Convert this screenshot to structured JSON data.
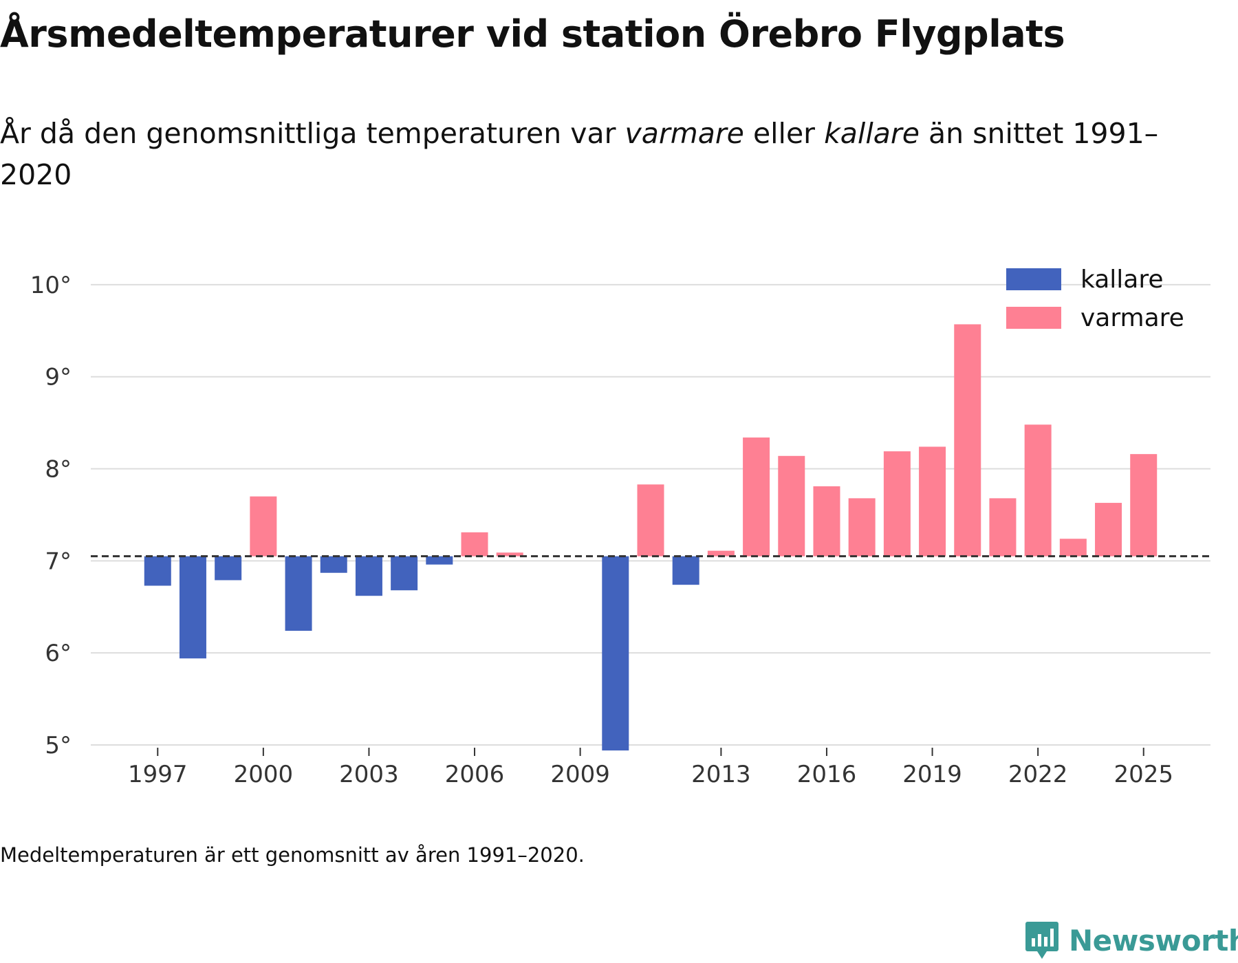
{
  "title": "Årsmedeltemperaturer vid station Örebro Flygplats",
  "subtitle": {
    "part1": "År då den genomsnittliga temperaturen var ",
    "warm_word": "varmare",
    "part2": " eller ",
    "cold_word": "kallare",
    "part3": " än snittet 1991–2020"
  },
  "footnote": "Medeltemperaturen är ett genomsnitt av åren 1991–2020.",
  "brand": "Newsworthy",
  "colors": {
    "cold": "#4263bd",
    "warm": "#fe8093",
    "grid": "#dddddd",
    "text": "#333333",
    "brand": "#3a9a96"
  },
  "chart_data": {
    "type": "bar",
    "title": "Årsmedeltemperaturer vid station Örebro Flygplats",
    "baseline": 7.05,
    "ylim": [
      5,
      10.5
    ],
    "yticks": [
      5,
      6,
      7,
      8,
      9,
      10
    ],
    "ytick_labels": [
      "5°",
      "6°",
      "7°",
      "8°",
      "9°",
      "10°"
    ],
    "xlim": [
      1995.1,
      2026.9
    ],
    "xticks": [
      1997,
      2000,
      2003,
      2006,
      2009,
      2013,
      2016,
      2019,
      2022,
      2025
    ],
    "xtick_labels": [
      "1997",
      "2000",
      "2003",
      "2006",
      "2009",
      "2013",
      "2016",
      "2019",
      "2022",
      "2025"
    ],
    "legend": {
      "position": "top-right",
      "entries": [
        "kallare",
        "varmare"
      ]
    },
    "series": [
      {
        "year": 1997,
        "value": 6.73
      },
      {
        "year": 1998,
        "value": 5.94
      },
      {
        "year": 1999,
        "value": 6.79
      },
      {
        "year": 2000,
        "value": 7.7
      },
      {
        "year": 2001,
        "value": 6.24
      },
      {
        "year": 2002,
        "value": 6.87
      },
      {
        "year": 2003,
        "value": 6.62
      },
      {
        "year": 2004,
        "value": 6.68
      },
      {
        "year": 2005,
        "value": 6.96
      },
      {
        "year": 2006,
        "value": 7.31
      },
      {
        "year": 2007,
        "value": 7.09
      },
      {
        "year": 2010,
        "value": 4.94
      },
      {
        "year": 2011,
        "value": 7.83
      },
      {
        "year": 2012,
        "value": 6.74
      },
      {
        "year": 2013,
        "value": 7.11
      },
      {
        "year": 2014,
        "value": 8.34
      },
      {
        "year": 2015,
        "value": 8.14
      },
      {
        "year": 2016,
        "value": 7.81
      },
      {
        "year": 2017,
        "value": 7.68
      },
      {
        "year": 2018,
        "value": 8.19
      },
      {
        "year": 2019,
        "value": 8.24
      },
      {
        "year": 2020,
        "value": 9.57
      },
      {
        "year": 2021,
        "value": 7.68
      },
      {
        "year": 2022,
        "value": 8.48
      },
      {
        "year": 2023,
        "value": 7.24
      },
      {
        "year": 2024,
        "value": 7.63
      },
      {
        "year": 2025,
        "value": 8.16
      }
    ]
  }
}
